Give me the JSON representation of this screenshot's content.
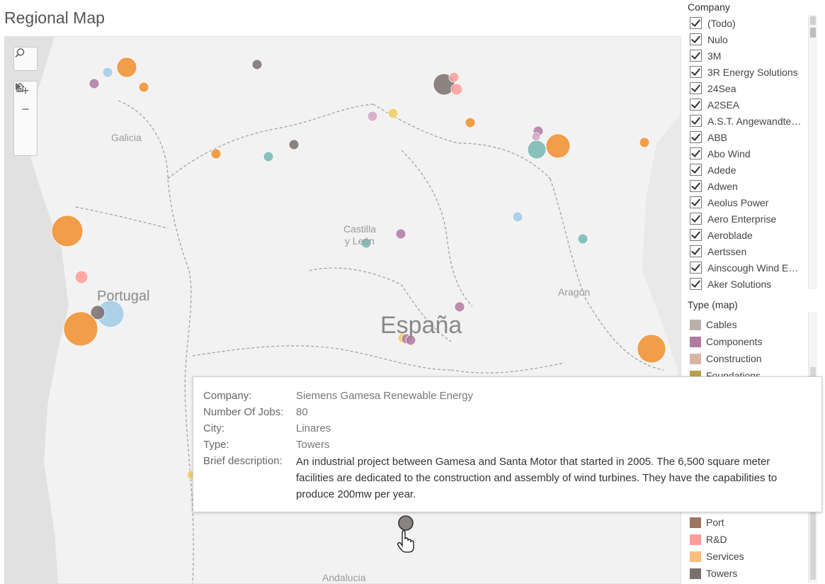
{
  "title": "Regional Map",
  "map": {
    "region_labels": [
      {
        "name": "galicia",
        "text": "Galicia"
      },
      {
        "name": "castilla-y-leon",
        "text": "Castilla\ny León"
      },
      {
        "name": "aragon",
        "text": "Aragón"
      },
      {
        "name": "andalucia",
        "text": "Andalucia"
      }
    ],
    "country_labels": [
      {
        "name": "portugal",
        "text": "Portugal"
      },
      {
        "name": "espana",
        "text": "España"
      }
    ],
    "controls": {
      "search_icon": "search-icon",
      "zoom_in": "+",
      "zoom_out": "−",
      "home_icon": "home-icon",
      "play_icon": "play-icon"
    },
    "marks": [
      {
        "type": "Foundations",
        "color": "#c9a227",
        "size": "small"
      },
      {
        "type": "Services",
        "color": "#f28e2b",
        "size": "medium"
      },
      {
        "type": "Components",
        "color": "#b07aa1",
        "size": "small"
      },
      {
        "type": "Towers",
        "color": "#79706e",
        "size": "small"
      }
    ]
  },
  "company_filter": {
    "title": "Company",
    "items": [
      "(Todo)",
      "Nulo",
      "3M",
      "3R Energy Solutions",
      "24Sea",
      "A2SEA",
      "A.S.T. Angewandte…",
      "ABB",
      "Abo Wind",
      "Adede",
      "Adwen",
      "Aeolus Power",
      "Aero Enterprise",
      "Aeroblade",
      "Aertssen",
      "Ainscough Wind E…",
      "Aker Solutions"
    ]
  },
  "type_legend": {
    "title": "Type (map)",
    "top_items": [
      {
        "label": "Cables",
        "color": "#bab0ac"
      },
      {
        "label": "Components",
        "color": "#b07aa1"
      },
      {
        "label": "Construction",
        "color": "#d7b5a6"
      },
      {
        "label": "Foundations",
        "color": "#b9a04a"
      }
    ],
    "bottom_items": [
      {
        "label": "Port",
        "color": "#9d7660"
      },
      {
        "label": "R&D",
        "color": "#ff9d9a"
      },
      {
        "label": "Services",
        "color": "#ffbe7d"
      },
      {
        "label": "Towers",
        "color": "#79706e"
      }
    ]
  },
  "tooltip": {
    "company_label": "Company:",
    "company_value": "Siemens Gamesa Renewable Energy",
    "jobs_label": "Number Of Jobs:",
    "jobs_value": "80",
    "city_label": "City:",
    "city_value": "Linares",
    "type_label": "Type:",
    "type_value": "Towers",
    "desc_label": "Brief description:",
    "desc_value": "An industrial project between Gamesa and Santa Motor that started in 2005. The  6,500 square meter facilities are dedicated to the construction and assembly of wind turbines. They have the capabilities to produce 200mw per year."
  },
  "colors": {
    "orange": "#f28e2b",
    "teal": "#76b7b2",
    "purple": "#b07aa1",
    "gray": "#79706e",
    "pink": "#ff9d9a",
    "lightblue": "#a0cbe8",
    "lightpurple": "#d4a6c8",
    "yellow": "#f1ce63"
  }
}
